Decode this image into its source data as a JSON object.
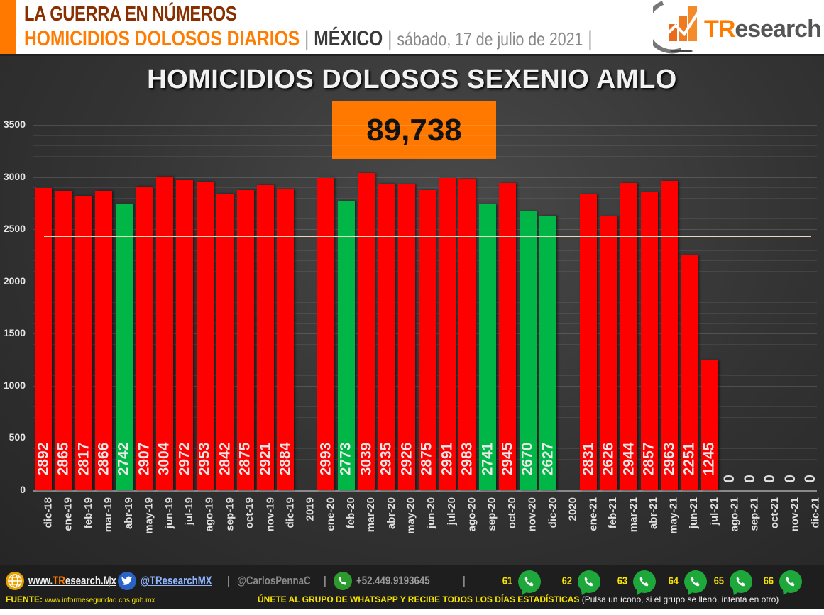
{
  "header": {
    "line1": "LA GUERRA EN NÚMEROS",
    "subject": "HOMICIDIOS DOLOSOS DIARIOS",
    "separator": "|",
    "country": "MÉXICO",
    "date": "sábado, 17 de julio de 2021",
    "logo_text_tr": "TR",
    "logo_text_rest": "esearch"
  },
  "chart": {
    "title": "HOMICIDIOS DOLOSOS SEXENIO AMLO",
    "total": "89,738"
  },
  "colors": {
    "accent_orange": "#ff7800",
    "bar_red": "#ff0000",
    "bar_green": "#00b646",
    "background": "#333333"
  },
  "chart_data": {
    "type": "bar",
    "title": "HOMICIDIOS DOLOSOS SEXENIO AMLO",
    "total_label": "89,738",
    "xlabel": "",
    "ylabel": "",
    "ylim": [
      0,
      3500
    ],
    "yticks": [
      0,
      500,
      1000,
      1500,
      2000,
      2500,
      3000,
      3500
    ],
    "reference_line": 2430,
    "grid": true,
    "legend": null,
    "categories": [
      "dic-18",
      "ene-19",
      "feb-19",
      "mar-19",
      "abr-19",
      "may-19",
      "jun-19",
      "jul-19",
      "ago-19",
      "sep-19",
      "oct-19",
      "nov-19",
      "dic-19",
      "2019",
      "ene-20",
      "feb-20",
      "mar-20",
      "abr-20",
      "may-20",
      "jun-20",
      "jul-20",
      "ago-20",
      "sep-20",
      "oct-20",
      "nov-20",
      "dic-20",
      "2020",
      "ene-21",
      "feb-21",
      "mar-21",
      "abr-21",
      "may-21",
      "jun-21",
      "jul-21",
      "ago-21",
      "sep-21",
      "oct-21",
      "nov-21",
      "dic-21"
    ],
    "values": [
      2892,
      2865,
      2817,
      2866,
      2742,
      2907,
      3004,
      2972,
      2953,
      2842,
      2875,
      2921,
      2884,
      null,
      2993,
      2773,
      3039,
      2935,
      2926,
      2875,
      2991,
      2983,
      2741,
      2945,
      2670,
      2627,
      null,
      2831,
      2626,
      2944,
      2857,
      2963,
      2251,
      1245,
      0,
      0,
      0,
      0,
      0
    ],
    "bar_colors": [
      "red",
      "red",
      "red",
      "red",
      "green",
      "red",
      "red",
      "red",
      "red",
      "red",
      "red",
      "red",
      "red",
      null,
      "red",
      "green",
      "red",
      "red",
      "red",
      "red",
      "red",
      "red",
      "green",
      "red",
      "green",
      "green",
      null,
      "red",
      "red",
      "red",
      "red",
      "red",
      "red",
      "red",
      null,
      null,
      null,
      null,
      null
    ]
  },
  "footer": {
    "website_prefix": "www.",
    "website_tr": "TR",
    "website_rest": "esearch.Mx",
    "twitter": "@TResearchMX",
    "personal": "@CarlosPennaC",
    "phone": "+52.449.9193645",
    "sep": "|",
    "whatsapp_groups": [
      {
        "num": "61"
      },
      {
        "num": "62"
      },
      {
        "num": "63"
      },
      {
        "num": "64"
      },
      {
        "num": "65"
      },
      {
        "num": "66"
      }
    ],
    "source_label": "FUENTE:",
    "source_url": "www.informeseguridad.cns.gob.mx",
    "cta": "ÚNETE AL GRUPO DE WHATSAPP Y RECIBE TODOS LOS DÍAS ESTADÍSTICAS",
    "cta_note": "(Pulsa un ícono, si el grupo se llenó, intenta en otro)"
  }
}
